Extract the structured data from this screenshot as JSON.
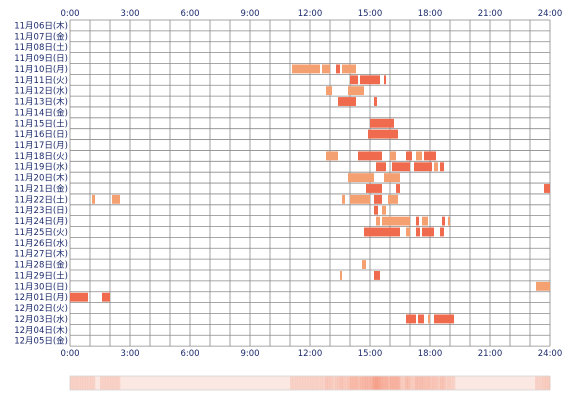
{
  "chart_data": {
    "type": "heatmap",
    "title": "",
    "xlabel": "",
    "ylabel": "",
    "xlim": [
      0,
      24
    ],
    "x_tick_labels": [
      "0:00",
      "3:00",
      "6:00",
      "9:00",
      "12:00",
      "15:00",
      "18:00",
      "21:00",
      "24:00"
    ],
    "days": [
      "11月06日(木)",
      "11月07日(金)",
      "11月08日(土)",
      "11月09日(日)",
      "11月10日(月)",
      "11月11日(火)",
      "11月12日(水)",
      "11月13日(木)",
      "11月14日(金)",
      "11月15日(土)",
      "11月16日(日)",
      "11月17日(月)",
      "11月18日(火)",
      "11月19日(水)",
      "11月20日(木)",
      "11月21日(金)",
      "11月22日(土)",
      "11月23日(日)",
      "11月24日(月)",
      "11月25日(火)",
      "11月26日(水)",
      "11月27日(木)",
      "11月28日(金)",
      "11月29日(土)",
      "11月30日(日)",
      "12月01日(月)",
      "12月02日(火)",
      "12月03日(水)",
      "12月04日(木)",
      "12月05日(金)"
    ],
    "grid": true,
    "cell_colors": {
      "high": "#f06a4e",
      "medium": "#f5a070",
      "low": "#f7c090"
    },
    "segments": [
      {
        "day": 4,
        "start": 11.1,
        "end": 12.5,
        "level": "medium"
      },
      {
        "day": 4,
        "start": 12.6,
        "end": 13.0,
        "level": "medium"
      },
      {
        "day": 4,
        "start": 13.3,
        "end": 13.5,
        "level": "high"
      },
      {
        "day": 4,
        "start": 13.6,
        "end": 14.3,
        "level": "medium"
      },
      {
        "day": 5,
        "start": 14.0,
        "end": 14.4,
        "level": "high"
      },
      {
        "day": 5,
        "start": 14.5,
        "end": 15.5,
        "level": "high"
      },
      {
        "day": 5,
        "start": 15.7,
        "end": 15.8,
        "level": "high"
      },
      {
        "day": 6,
        "start": 12.8,
        "end": 13.1,
        "level": "medium"
      },
      {
        "day": 6,
        "start": 13.9,
        "end": 14.7,
        "level": "medium"
      },
      {
        "day": 7,
        "start": 13.4,
        "end": 14.3,
        "level": "high"
      },
      {
        "day": 7,
        "start": 15.2,
        "end": 15.35,
        "level": "high"
      },
      {
        "day": 9,
        "start": 15.0,
        "end": 16.2,
        "level": "high"
      },
      {
        "day": 10,
        "start": 14.9,
        "end": 16.4,
        "level": "high"
      },
      {
        "day": 12,
        "start": 12.8,
        "end": 13.4,
        "level": "medium"
      },
      {
        "day": 12,
        "start": 14.4,
        "end": 15.6,
        "level": "high"
      },
      {
        "day": 12,
        "start": 16.0,
        "end": 16.3,
        "level": "medium"
      },
      {
        "day": 12,
        "start": 16.8,
        "end": 17.1,
        "level": "high"
      },
      {
        "day": 12,
        "start": 17.3,
        "end": 17.6,
        "level": "medium"
      },
      {
        "day": 12,
        "start": 17.7,
        "end": 18.3,
        "level": "high"
      },
      {
        "day": 13,
        "start": 15.3,
        "end": 15.8,
        "level": "high"
      },
      {
        "day": 13,
        "start": 16.1,
        "end": 17.0,
        "level": "high"
      },
      {
        "day": 13,
        "start": 17.2,
        "end": 18.1,
        "level": "high"
      },
      {
        "day": 13,
        "start": 18.2,
        "end": 18.4,
        "level": "medium"
      },
      {
        "day": 13,
        "start": 18.5,
        "end": 18.7,
        "level": "high"
      },
      {
        "day": 14,
        "start": 13.9,
        "end": 15.2,
        "level": "medium"
      },
      {
        "day": 14,
        "start": 15.7,
        "end": 16.5,
        "level": "medium"
      },
      {
        "day": 15,
        "start": 14.8,
        "end": 15.6,
        "level": "high"
      },
      {
        "day": 15,
        "start": 16.3,
        "end": 16.5,
        "level": "high"
      },
      {
        "day": 15,
        "start": 23.7,
        "end": 24.0,
        "level": "high"
      },
      {
        "day": 16,
        "start": 1.1,
        "end": 1.25,
        "level": "medium"
      },
      {
        "day": 16,
        "start": 2.1,
        "end": 2.5,
        "level": "medium"
      },
      {
        "day": 16,
        "start": 13.6,
        "end": 13.75,
        "level": "medium"
      },
      {
        "day": 16,
        "start": 14.0,
        "end": 15.0,
        "level": "medium"
      },
      {
        "day": 16,
        "start": 15.2,
        "end": 15.6,
        "level": "high"
      },
      {
        "day": 16,
        "start": 15.9,
        "end": 16.4,
        "level": "medium"
      },
      {
        "day": 17,
        "start": 15.2,
        "end": 15.4,
        "level": "high"
      },
      {
        "day": 17,
        "start": 15.6,
        "end": 15.8,
        "level": "medium"
      },
      {
        "day": 18,
        "start": 15.3,
        "end": 15.5,
        "level": "medium"
      },
      {
        "day": 18,
        "start": 15.6,
        "end": 17.0,
        "level": "medium"
      },
      {
        "day": 18,
        "start": 17.3,
        "end": 17.45,
        "level": "high"
      },
      {
        "day": 18,
        "start": 17.6,
        "end": 17.9,
        "level": "medium"
      },
      {
        "day": 18,
        "start": 18.6,
        "end": 18.75,
        "level": "high"
      },
      {
        "day": 18,
        "start": 18.9,
        "end": 19.0,
        "level": "medium"
      },
      {
        "day": 19,
        "start": 14.7,
        "end": 16.5,
        "level": "high"
      },
      {
        "day": 19,
        "start": 16.8,
        "end": 17.0,
        "level": "medium"
      },
      {
        "day": 19,
        "start": 17.3,
        "end": 17.5,
        "level": "high"
      },
      {
        "day": 19,
        "start": 17.6,
        "end": 18.2,
        "level": "high"
      },
      {
        "day": 19,
        "start": 18.5,
        "end": 18.7,
        "level": "high"
      },
      {
        "day": 22,
        "start": 14.6,
        "end": 14.8,
        "level": "medium"
      },
      {
        "day": 23,
        "start": 13.5,
        "end": 13.6,
        "level": "medium"
      },
      {
        "day": 23,
        "start": 15.2,
        "end": 15.5,
        "level": "high"
      },
      {
        "day": 24,
        "start": 23.3,
        "end": 24.0,
        "level": "medium"
      },
      {
        "day": 25,
        "start": 0.0,
        "end": 0.9,
        "level": "high"
      },
      {
        "day": 25,
        "start": 1.6,
        "end": 2.0,
        "level": "high"
      },
      {
        "day": 27,
        "start": 16.8,
        "end": 17.3,
        "level": "high"
      },
      {
        "day": 27,
        "start": 17.4,
        "end": 17.7,
        "level": "high"
      },
      {
        "day": 27,
        "start": 17.9,
        "end": 18.0,
        "level": "medium"
      },
      {
        "day": 27,
        "start": 18.2,
        "end": 19.2,
        "level": "high"
      }
    ],
    "summary_bar": {
      "base_color": "#fbe8e2",
      "highlight_color": "#f5a08a"
    }
  }
}
